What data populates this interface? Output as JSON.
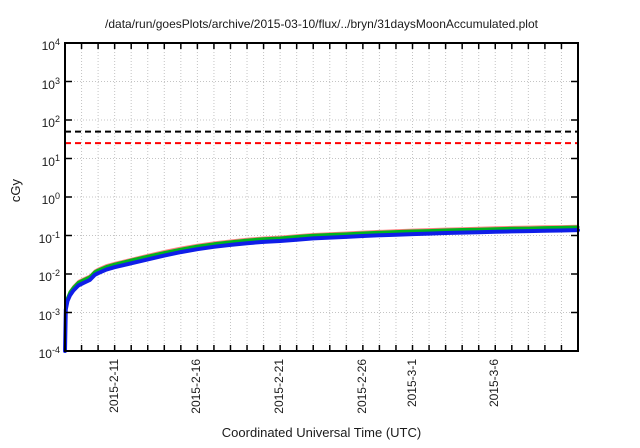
{
  "colors": {
    "background": "#ffffff",
    "border": "#000000",
    "grid": "#c4c4c4",
    "tick": "#000000",
    "text": "#1a1a1a",
    "blue_series": "#0f1ee8",
    "green_series": "#00b41e",
    "red_series": "#ff8080",
    "black_limit": "#000000",
    "red_limit": "#ff0000"
  },
  "chart_data": {
    "type": "line",
    "title": "/data/run/goesPlots/archive/2015-03-10/flux/../bryn/31daysMoonAccumulated.plot",
    "xlabel": "Coordinated Universal Time (UTC)",
    "ylabel": "cGy",
    "legend": "none",
    "grid": true,
    "x_axis": {
      "range_days": 31,
      "minor_tick_interval_days": 1,
      "ticks": [
        {
          "day": 3,
          "label": "2015-2-11"
        },
        {
          "day": 8,
          "label": "2015-2-16"
        },
        {
          "day": 13,
          "label": "2015-2-21"
        },
        {
          "day": 18,
          "label": "2015-2-26"
        },
        {
          "day": 21,
          "label": "2015-3-1"
        },
        {
          "day": 26,
          "label": "2015-3-6"
        }
      ]
    },
    "y_axis": {
      "scale": "log",
      "ylim": [
        0.0001,
        10000
      ],
      "tick_base": "10",
      "tick_exponents": [
        4,
        3,
        2,
        1,
        0,
        -1,
        -2,
        -3,
        -4
      ]
    },
    "thresholds": [
      {
        "name": "black-limit-line",
        "value": 50,
        "color": "#000000",
        "style": "dashed"
      },
      {
        "name": "red-limit-line",
        "value": 25,
        "color": "#ff0000",
        "style": "dashed"
      }
    ],
    "series": [
      {
        "name": "red-accumulated-dose",
        "color": "#ff8080",
        "width": 1.6,
        "points": [
          [
            0,
            0.00013
          ],
          [
            0.05,
            0.0016
          ],
          [
            0.15,
            0.0026
          ],
          [
            0.3,
            0.0037
          ],
          [
            0.5,
            0.0049
          ],
          [
            0.8,
            0.0066
          ],
          [
            1.1,
            0.0077
          ],
          [
            1.5,
            0.0092
          ],
          [
            1.8,
            0.0125
          ],
          [
            2.0,
            0.0139
          ],
          [
            2.5,
            0.0172
          ],
          [
            3.0,
            0.0198
          ],
          [
            4.0,
            0.025
          ],
          [
            5.0,
            0.032
          ],
          [
            6.0,
            0.04
          ],
          [
            7.0,
            0.049
          ],
          [
            8.0,
            0.058
          ],
          [
            9.0,
            0.067
          ],
          [
            10.0,
            0.075
          ],
          [
            11.0,
            0.083
          ],
          [
            12.0,
            0.09
          ],
          [
            13.0,
            0.095
          ],
          [
            14.0,
            0.103
          ],
          [
            15.0,
            0.111
          ],
          [
            16.0,
            0.116
          ],
          [
            17.0,
            0.121
          ],
          [
            18.0,
            0.128
          ],
          [
            19.0,
            0.133
          ],
          [
            20.0,
            0.139
          ],
          [
            21.0,
            0.144
          ],
          [
            22.0,
            0.148
          ],
          [
            23.0,
            0.153
          ],
          [
            24.0,
            0.157
          ],
          [
            25.0,
            0.161
          ],
          [
            26.0,
            0.165
          ],
          [
            27.0,
            0.169
          ],
          [
            28.0,
            0.172
          ],
          [
            29.0,
            0.176
          ],
          [
            30.0,
            0.178
          ],
          [
            31.0,
            0.182
          ]
        ]
      },
      {
        "name": "green-accumulated-dose",
        "color": "#00b41e",
        "width": 3,
        "points": [
          [
            0,
            0.00012
          ],
          [
            0.05,
            0.0014
          ],
          [
            0.15,
            0.0024
          ],
          [
            0.3,
            0.0034
          ],
          [
            0.5,
            0.0044
          ],
          [
            0.8,
            0.006
          ],
          [
            1.1,
            0.007
          ],
          [
            1.5,
            0.0084
          ],
          [
            1.8,
            0.0114
          ],
          [
            2.0,
            0.0126
          ],
          [
            2.5,
            0.0156
          ],
          [
            3.0,
            0.018
          ],
          [
            4.0,
            0.023
          ],
          [
            5.0,
            0.029
          ],
          [
            6.0,
            0.036
          ],
          [
            7.0,
            0.044
          ],
          [
            8.0,
            0.053
          ],
          [
            9.0,
            0.061
          ],
          [
            10.0,
            0.068
          ],
          [
            11.0,
            0.076
          ],
          [
            12.0,
            0.082
          ],
          [
            13.0,
            0.086
          ],
          [
            14.0,
            0.094
          ],
          [
            15.0,
            0.101
          ],
          [
            16.0,
            0.106
          ],
          [
            17.0,
            0.11
          ],
          [
            18.0,
            0.116
          ],
          [
            19.0,
            0.121
          ],
          [
            20.0,
            0.126
          ],
          [
            21.0,
            0.131
          ],
          [
            22.0,
            0.134
          ],
          [
            23.0,
            0.139
          ],
          [
            24.0,
            0.143
          ],
          [
            25.0,
            0.146
          ],
          [
            26.0,
            0.15
          ],
          [
            27.0,
            0.154
          ],
          [
            28.0,
            0.156
          ],
          [
            29.0,
            0.16
          ],
          [
            30.0,
            0.162
          ],
          [
            31.0,
            0.166
          ]
        ]
      },
      {
        "name": "blue-accumulated-dose",
        "color": "#0f1ee8",
        "width": 4,
        "points": [
          [
            0,
            0.0001
          ],
          [
            0.05,
            0.0012
          ],
          [
            0.15,
            0.002
          ],
          [
            0.3,
            0.0028
          ],
          [
            0.5,
            0.0037
          ],
          [
            0.8,
            0.005
          ],
          [
            1.1,
            0.0058
          ],
          [
            1.5,
            0.007
          ],
          [
            1.8,
            0.0095
          ],
          [
            2.0,
            0.0105
          ],
          [
            2.5,
            0.013
          ],
          [
            3.0,
            0.015
          ],
          [
            4.0,
            0.019
          ],
          [
            5.0,
            0.024
          ],
          [
            6.0,
            0.03
          ],
          [
            7.0,
            0.037
          ],
          [
            8.0,
            0.044
          ],
          [
            9.0,
            0.051
          ],
          [
            10.0,
            0.057
          ],
          [
            11.0,
            0.063
          ],
          [
            12.0,
            0.068
          ],
          [
            13.0,
            0.072
          ],
          [
            14.0,
            0.078
          ],
          [
            15.0,
            0.084
          ],
          [
            16.0,
            0.088
          ],
          [
            17.0,
            0.092
          ],
          [
            18.0,
            0.097
          ],
          [
            19.0,
            0.101
          ],
          [
            20.0,
            0.105
          ],
          [
            21.0,
            0.109
          ],
          [
            22.0,
            0.112
          ],
          [
            23.0,
            0.116
          ],
          [
            24.0,
            0.119
          ],
          [
            25.0,
            0.122
          ],
          [
            26.0,
            0.125
          ],
          [
            27.0,
            0.128
          ],
          [
            28.0,
            0.13
          ],
          [
            29.0,
            0.133
          ],
          [
            30.0,
            0.135
          ],
          [
            31.0,
            0.138
          ]
        ]
      }
    ]
  }
}
